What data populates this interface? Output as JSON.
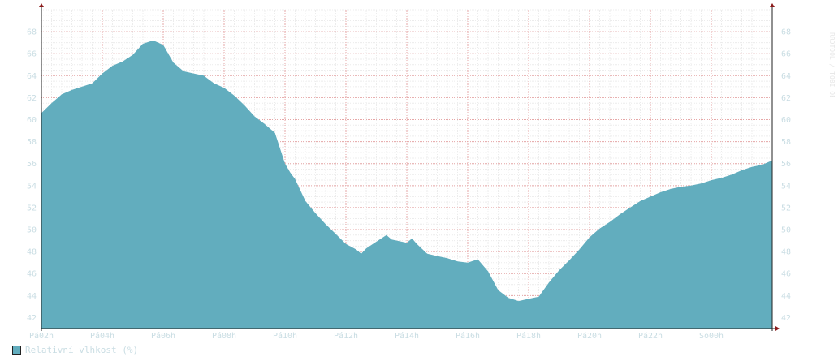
{
  "chart_data": {
    "type": "area",
    "title": "",
    "xlabel": "",
    "ylabel": "",
    "ylim": [
      41,
      70
    ],
    "x_tick_labels": [
      "Pá02h",
      "Pá04h",
      "Pá06h",
      "Pá08h",
      "Pá10h",
      "Pá12h",
      "Pá14h",
      "Pá16h",
      "Pá18h",
      "Pá20h",
      "Pá22h",
      "So00h"
    ],
    "y_tick_labels": [
      "42",
      "44",
      "46",
      "48",
      "50",
      "52",
      "54",
      "56",
      "58",
      "60",
      "62",
      "64",
      "66",
      "68"
    ],
    "x_start_hour": 2,
    "x_end_hour": 26,
    "grid": true,
    "legend_position": "bottom-left",
    "series": [
      {
        "name": "Relativní vlhkost (%)",
        "color": "#62adbe",
        "x": [
          2.0,
          2.33,
          2.67,
          3.0,
          3.33,
          3.67,
          4.0,
          4.33,
          4.67,
          5.0,
          5.33,
          5.67,
          6.0,
          6.33,
          6.67,
          7.0,
          7.33,
          7.67,
          8.0,
          8.33,
          8.67,
          9.0,
          9.33,
          9.67,
          10.0,
          10.17,
          10.33,
          10.67,
          11.0,
          11.33,
          11.67,
          12.0,
          12.33,
          12.5,
          12.67,
          13.0,
          13.33,
          13.5,
          13.67,
          14.0,
          14.17,
          14.33,
          14.67,
          15.0,
          15.33,
          15.67,
          16.0,
          16.33,
          16.67,
          17.0,
          17.33,
          17.67,
          18.0,
          18.33,
          18.67,
          19.0,
          19.33,
          19.67,
          20.0,
          20.33,
          20.67,
          21.0,
          21.33,
          21.67,
          22.0,
          22.33,
          22.67,
          23.0,
          23.33,
          23.67,
          24.0,
          24.33,
          24.67,
          25.0,
          25.33,
          25.67,
          26.0
        ],
        "values": [
          60.6,
          61.5,
          62.3,
          62.7,
          63.0,
          63.3,
          64.2,
          64.9,
          65.3,
          65.9,
          66.9,
          67.2,
          66.8,
          65.2,
          64.4,
          64.2,
          64.0,
          63.3,
          62.9,
          62.2,
          61.3,
          60.3,
          59.6,
          58.8,
          56.0,
          55.2,
          54.6,
          52.6,
          51.5,
          50.5,
          49.6,
          48.7,
          48.2,
          47.8,
          48.3,
          48.9,
          49.5,
          49.1,
          49.0,
          48.8,
          49.2,
          48.7,
          47.8,
          47.6,
          47.4,
          47.1,
          47.0,
          47.3,
          46.2,
          44.5,
          43.8,
          43.5,
          43.7,
          43.9,
          45.2,
          46.3,
          47.2,
          48.2,
          49.3,
          50.1,
          50.7,
          51.4,
          52.0,
          52.6,
          53.0,
          53.4,
          53.7,
          53.9,
          54.0,
          54.2,
          54.5,
          54.7,
          55.0,
          55.4,
          55.7,
          55.9,
          56.3
        ]
      }
    ]
  },
  "legend": {
    "label": "Relativní vlhkost (%)",
    "color": "#62adbe"
  },
  "side_watermark": "RRDTOOL / TOBI OETIKER"
}
